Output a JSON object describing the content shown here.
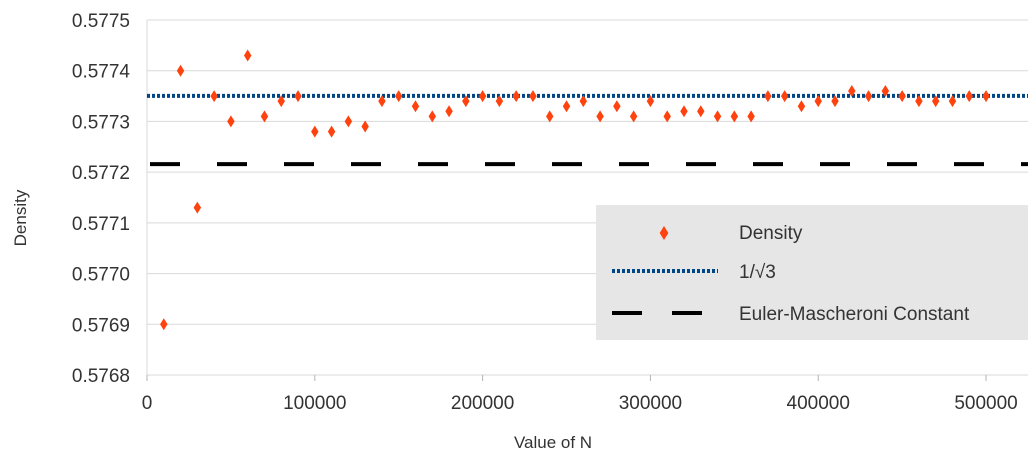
{
  "chart_data": {
    "type": "scatter",
    "title": "",
    "xlabel": "Value of N",
    "ylabel": "Density",
    "xlim": [
      0,
      525000
    ],
    "ylim": [
      0.5768,
      0.5775
    ],
    "x_ticks": [
      "0",
      "100000",
      "200000",
      "300000",
      "400000",
      "500000"
    ],
    "x_tick_values": [
      0,
      100000,
      200000,
      300000,
      400000,
      500000
    ],
    "y_ticks": [
      "0.5768",
      "0.5769",
      "0.5770",
      "0.5771",
      "0.5772",
      "0.5773",
      "0.5774",
      "0.5775"
    ],
    "y_tick_values": [
      0.5768,
      0.5769,
      0.577,
      0.5771,
      0.5772,
      0.5773,
      0.5774,
      0.5775
    ],
    "grid": "horizontal",
    "legend_position": "bottom-right",
    "series": [
      {
        "name": "Density",
        "kind": "scatter",
        "marker": "diamond",
        "color": "#ff420e",
        "x": [
          10000,
          20000,
          30000,
          40000,
          50000,
          60000,
          70000,
          80000,
          90000,
          100000,
          110000,
          120000,
          130000,
          140000,
          150000,
          160000,
          170000,
          180000,
          190000,
          200000,
          210000,
          220000,
          230000,
          240000,
          250000,
          260000,
          270000,
          280000,
          290000,
          300000,
          310000,
          320000,
          330000,
          340000,
          350000,
          360000,
          370000,
          380000,
          390000,
          400000,
          410000,
          420000,
          430000,
          440000,
          450000,
          460000,
          470000,
          480000,
          490000,
          500000
        ],
        "y": [
          0.5769,
          0.5774,
          0.57713,
          0.57735,
          0.5773,
          0.57743,
          0.57731,
          0.57734,
          0.57735,
          0.57728,
          0.57728,
          0.5773,
          0.57729,
          0.57734,
          0.57735,
          0.57733,
          0.57731,
          0.57732,
          0.57734,
          0.57735,
          0.57734,
          0.57735,
          0.57735,
          0.57731,
          0.57733,
          0.57734,
          0.57731,
          0.57733,
          0.57731,
          0.57734,
          0.57731,
          0.57732,
          0.57732,
          0.57731,
          0.57731,
          0.57731,
          0.57735,
          0.57735,
          0.57733,
          0.57734,
          0.57734,
          0.57736,
          0.57735,
          0.57736,
          0.57735,
          0.57734,
          0.57734,
          0.57734,
          0.57735,
          0.57735
        ]
      },
      {
        "name": "1/√3",
        "kind": "hline",
        "style": "dotted",
        "color": "#004586",
        "y": 0.5773503
      },
      {
        "name": "Euler-Mascheroni Constant",
        "kind": "hline",
        "style": "dashed",
        "color": "#000000",
        "y": 0.5772157
      }
    ]
  }
}
